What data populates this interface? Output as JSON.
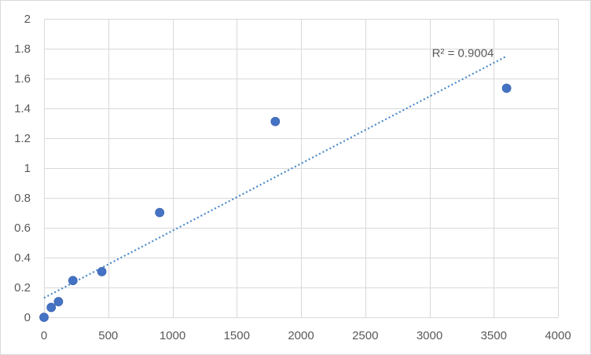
{
  "chart_data": {
    "type": "scatter",
    "title": "",
    "xlabel": "",
    "ylabel": "",
    "xlim": [
      0,
      4000
    ],
    "ylim": [
      0,
      2
    ],
    "x_ticks": [
      0,
      500,
      1000,
      1500,
      2000,
      2500,
      3000,
      3500,
      4000
    ],
    "y_ticks": [
      0,
      0.2,
      0.4,
      0.6,
      0.8,
      1,
      1.2,
      1.4,
      1.6,
      1.8,
      2
    ],
    "grid": true,
    "legend": "none",
    "marker_color": "#4472c4",
    "series": [
      {
        "x": [
          0,
          56.25,
          112.5,
          225,
          450,
          900,
          1800,
          3600
        ],
        "y": [
          0.0,
          0.066,
          0.105,
          0.246,
          0.306,
          0.702,
          1.312,
          1.535
        ]
      }
    ],
    "trendline": {
      "type": "linear",
      "x_range": [
        0,
        3600
      ],
      "y_at_start": 0.13,
      "y_at_end": 1.75,
      "color": "#4a8ac9",
      "style": "dotted",
      "label": "R² = 0.9004"
    }
  }
}
